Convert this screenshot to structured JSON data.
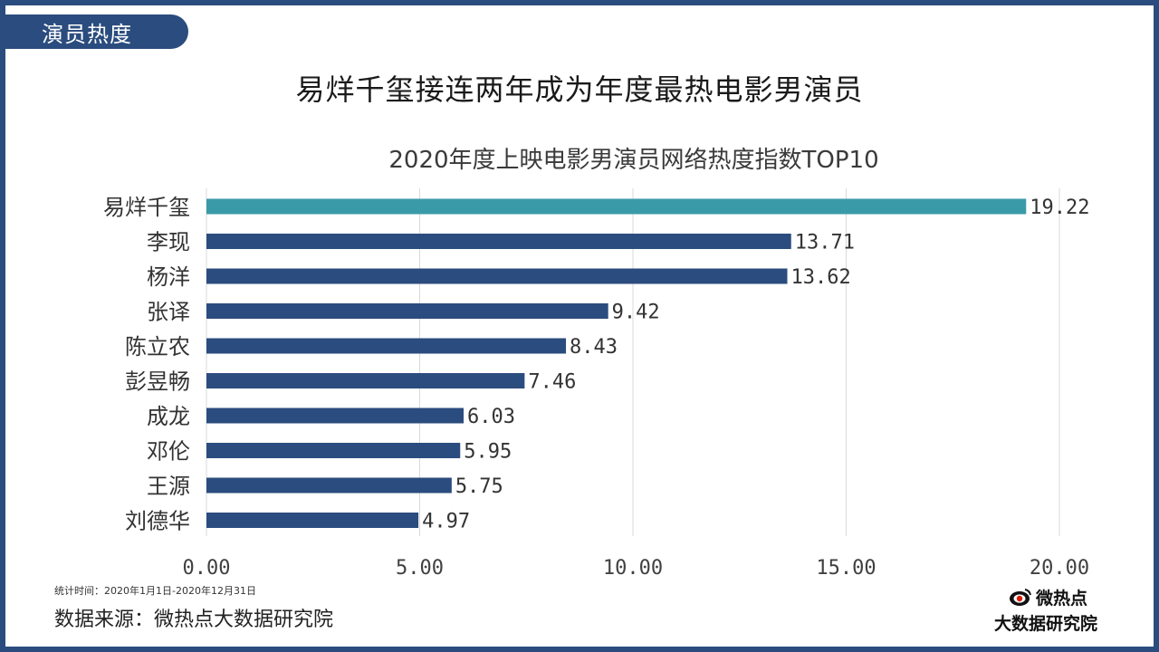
{
  "header": {
    "section_tag": "演员热度",
    "headline": "易烊千玺接连两年成为年度最热电影男演员"
  },
  "chart_data": {
    "type": "bar",
    "orientation": "horizontal",
    "title": "2020年度上映电影男演员网络热度指数TOP10",
    "categories": [
      "易烊千玺",
      "李现",
      "杨洋",
      "张译",
      "陈立农",
      "彭昱畅",
      "成龙",
      "邓伦",
      "王源",
      "刘德华"
    ],
    "values": [
      19.22,
      13.71,
      13.62,
      9.42,
      8.43,
      7.46,
      6.03,
      5.95,
      5.75,
      4.97
    ],
    "value_labels": [
      "19.22",
      "13.71",
      "13.62",
      "9.42",
      "8.43",
      "7.46",
      "6.03",
      "5.95",
      "5.75",
      "4.97"
    ],
    "xlim": [
      0,
      20
    ],
    "x_ticks": [
      0,
      5,
      10,
      15,
      20
    ],
    "x_tick_labels": [
      "0.00",
      "5.00",
      "10.00",
      "15.00",
      "20.00"
    ],
    "grid": "vertical",
    "highlight_color": "#3a9aa8",
    "bar_color": "#2b4c7e"
  },
  "footer": {
    "stat_time": "统计时间：2020年1月1日-2020年12月31日",
    "source": "数据来源：微热点大数据研究院"
  },
  "logo": {
    "icon": "weirediandian-eye-icon",
    "top_text": "微热点",
    "bottom_text": "大数据研究院"
  }
}
